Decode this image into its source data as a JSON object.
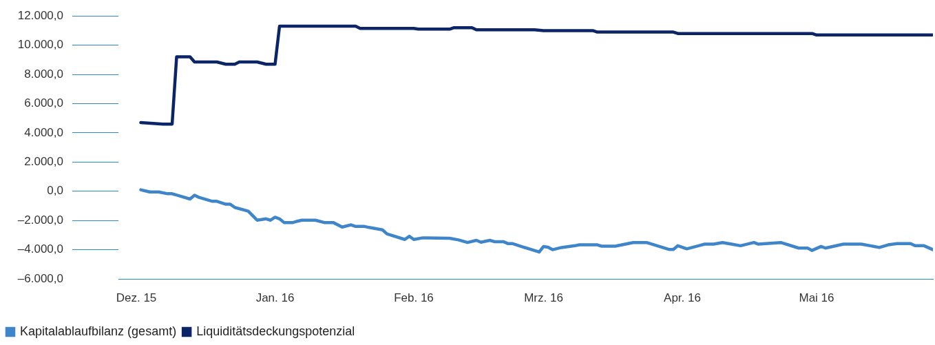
{
  "chart_data": {
    "type": "line",
    "legend": "bottom left",
    "grid": false,
    "marker": "none",
    "line_style": "solid",
    "xlim": [
      "2015-11-27",
      "2016-05-27"
    ],
    "xticks": [
      {
        "value": "2015-12-01",
        "label": "Dez. 15"
      },
      {
        "value": "2016-01-01",
        "label": "Jan. 16"
      },
      {
        "value": "2016-02-01",
        "label": "Feb. 16"
      },
      {
        "value": "2016-03-01",
        "label": "Mrz. 16"
      },
      {
        "value": "2016-04-01",
        "label": "Apr. 16"
      },
      {
        "value": "2016-05-01",
        "label": "Mai 16"
      }
    ],
    "ylim": [
      -6000,
      12000
    ],
    "yticks": [
      {
        "value": -6000,
        "label": "–6.000,0"
      },
      {
        "value": -4000,
        "label": "–4.000,0"
      },
      {
        "value": -2000,
        "label": "–2.000,0"
      },
      {
        "value": 0,
        "label": "0,0"
      },
      {
        "value": 2000,
        "label": "2.000,0"
      },
      {
        "value": 4000,
        "label": "4.000,0"
      },
      {
        "value": 6000,
        "label": "6.000,0"
      },
      {
        "value": 8000,
        "label": "8.000,0"
      },
      {
        "value": 10000,
        "label": "10.000,0"
      },
      {
        "value": 12000,
        "label": "12.000,0"
      }
    ],
    "series": [
      {
        "name": "Kapitalablaufbilanz (gesamt)",
        "color": "#3f85c9",
        "x": [
          "2015-12-02",
          "2015-12-04",
          "2015-12-06",
          "2015-12-08",
          "2015-12-09",
          "2015-12-13",
          "2015-12-14",
          "2015-12-15",
          "2015-12-18",
          "2015-12-19",
          "2015-12-21",
          "2015-12-22",
          "2015-12-23",
          "2015-12-26",
          "2015-12-27",
          "2015-12-28",
          "2015-12-30",
          "2015-12-31",
          "2016-01-01",
          "2016-01-02",
          "2016-01-03",
          "2016-01-05",
          "2016-01-06",
          "2016-01-07",
          "2016-01-10",
          "2016-01-12",
          "2016-01-14",
          "2016-01-16",
          "2016-01-18",
          "2016-01-19",
          "2016-01-21",
          "2016-01-22",
          "2016-01-25",
          "2016-01-26",
          "2016-01-30",
          "2016-01-31",
          "2016-02-01",
          "2016-02-03",
          "2016-02-04",
          "2016-02-09",
          "2016-02-11",
          "2016-02-13",
          "2016-02-15",
          "2016-02-16",
          "2016-02-18",
          "2016-02-19",
          "2016-02-21",
          "2016-02-22",
          "2016-02-23",
          "2016-02-25",
          "2016-02-29",
          "2016-03-01",
          "2016-03-02",
          "2016-03-03",
          "2016-03-05",
          "2016-03-08",
          "2016-03-09",
          "2016-03-13",
          "2016-03-14",
          "2016-03-17",
          "2016-03-21",
          "2016-03-24",
          "2016-03-29",
          "2016-03-30",
          "2016-03-31",
          "2016-04-02",
          "2016-04-06",
          "2016-04-08",
          "2016-04-10",
          "2016-04-12",
          "2016-04-14",
          "2016-04-17",
          "2016-04-18",
          "2016-04-23",
          "2016-04-27",
          "2016-04-29",
          "2016-04-30",
          "2016-05-02",
          "2016-05-03",
          "2016-05-07",
          "2016-05-11",
          "2016-05-13",
          "2016-05-15",
          "2016-05-17",
          "2016-05-19",
          "2016-05-22",
          "2016-05-23",
          "2016-05-25",
          "2016-05-27"
        ],
        "values": [
          100,
          -50,
          -50,
          -170,
          -170,
          -530,
          -270,
          -420,
          -690,
          -690,
          -890,
          -890,
          -1110,
          -1360,
          -1670,
          -1980,
          -1890,
          -1980,
          -1780,
          -1890,
          -2140,
          -2140,
          -2050,
          -1980,
          -1980,
          -2140,
          -2140,
          -2450,
          -2300,
          -2410,
          -2410,
          -2480,
          -2640,
          -2920,
          -3300,
          -3080,
          -3300,
          -3190,
          -3200,
          -3220,
          -3330,
          -3510,
          -3360,
          -3490,
          -3360,
          -3450,
          -3450,
          -3580,
          -3580,
          -3780,
          -4160,
          -3780,
          -3830,
          -4000,
          -3850,
          -3730,
          -3670,
          -3670,
          -3760,
          -3760,
          -3510,
          -3510,
          -3980,
          -3980,
          -3730,
          -3940,
          -3620,
          -3620,
          -3510,
          -3620,
          -3730,
          -3510,
          -3620,
          -3510,
          -3890,
          -3890,
          -4050,
          -3780,
          -3890,
          -3620,
          -3620,
          -3730,
          -3850,
          -3670,
          -3580,
          -3580,
          -3730,
          -3730,
          -4000
        ]
      },
      {
        "name": "Liquiditätsdeckungspotenzial",
        "color": "#0b2566",
        "x": [
          "2015-12-02",
          "2015-12-07",
          "2015-12-09",
          "2015-12-10",
          "2015-12-13",
          "2015-12-14",
          "2015-12-19",
          "2015-12-21",
          "2015-12-23",
          "2015-12-24",
          "2015-12-28",
          "2015-12-30",
          "2016-01-01",
          "2016-01-02",
          "2016-01-19",
          "2016-01-20",
          "2016-02-01",
          "2016-02-02",
          "2016-02-09",
          "2016-02-10",
          "2016-02-14",
          "2016-02-15",
          "2016-02-28",
          "2016-03-01",
          "2016-03-12",
          "2016-03-13",
          "2016-03-30",
          "2016-03-31",
          "2016-04-30",
          "2016-05-01",
          "2016-05-27"
        ],
        "values": [
          4700,
          4600,
          4600,
          9200,
          9200,
          8850,
          8850,
          8700,
          8700,
          8850,
          8850,
          8700,
          8700,
          11300,
          11300,
          11150,
          11150,
          11100,
          11100,
          11200,
          11200,
          11050,
          11050,
          11000,
          11000,
          10900,
          10900,
          10800,
          10800,
          10700,
          10700
        ]
      }
    ]
  }
}
